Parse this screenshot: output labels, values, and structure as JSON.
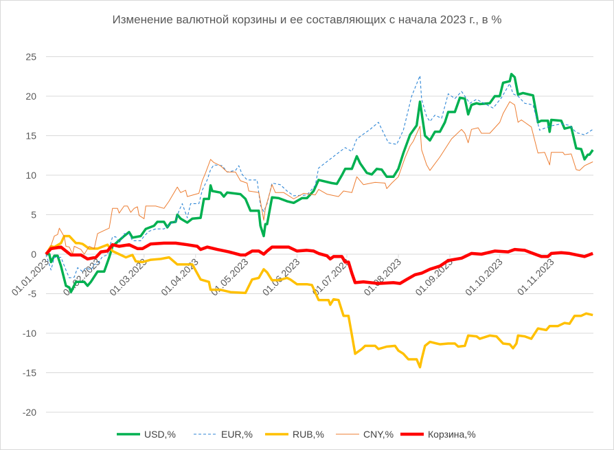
{
  "chart_data": {
    "type": "line",
    "title": "Изменение валютной корзины и ее составляющих с начала 2023 г., в %",
    "xlabel": "",
    "ylabel": "",
    "x_unit": "days since 01.01.2023",
    "ylim": [
      -20,
      25
    ],
    "yticks": [
      25,
      20,
      15,
      10,
      5,
      0,
      -5,
      -10,
      -15,
      -20
    ],
    "xticks": [
      {
        "day": 0,
        "label": "01.01.2023"
      },
      {
        "day": 31,
        "label": "01.02.2023"
      },
      {
        "day": 59,
        "label": "01.03.2023"
      },
      {
        "day": 90,
        "label": "01.04.2023"
      },
      {
        "day": 120,
        "label": "01.05.2023"
      },
      {
        "day": 151,
        "label": "01.06.2023"
      },
      {
        "day": 181,
        "label": "01.07.2023"
      },
      {
        "day": 212,
        "label": "01.08.2023"
      },
      {
        "day": 243,
        "label": "01.09.2023"
      },
      {
        "day": 273,
        "label": "01.10.2023"
      },
      {
        "day": 304,
        "label": "01.11.2023"
      }
    ],
    "xlim": [
      0,
      329
    ],
    "grid": true,
    "legend_position": "bottom",
    "series": [
      {
        "name": "USD,%",
        "color": "#00b050",
        "style": "thick",
        "x": [
          0,
          2,
          3,
          5,
          7,
          9,
          12,
          14,
          15,
          18,
          23,
          25,
          27,
          31,
          35,
          38,
          40,
          47,
          50,
          52,
          57,
          60,
          65,
          67,
          71,
          73,
          75,
          78,
          79,
          81,
          85,
          88,
          93,
          95,
          98,
          99,
          100,
          105,
          107,
          109,
          117,
          120,
          123,
          128,
          129,
          131,
          132,
          133,
          136,
          140,
          145,
          149,
          154,
          157,
          161,
          164,
          172,
          175,
          178,
          180,
          184,
          187,
          189,
          193,
          196,
          199,
          202,
          205,
          209,
          212,
          215,
          219,
          223,
          225,
          228,
          231,
          234,
          237,
          240,
          242,
          246,
          249,
          252,
          254,
          256,
          259,
          261,
          267,
          270,
          273,
          275,
          279,
          280,
          282,
          284,
          287,
          293,
          296,
          298,
          302,
          303,
          304,
          310,
          312,
          316,
          319,
          322,
          324,
          326,
          327,
          329
        ],
        "y": [
          0,
          0,
          -1.0,
          -0.2,
          -0.2,
          -1.5,
          -4.0,
          -4.2,
          -4.8,
          -3.5,
          -3.5,
          -4.0,
          -3.5,
          -2.2,
          -2.2,
          -0.4,
          1.0,
          2.3,
          2.8,
          2.1,
          2.3,
          3.2,
          3.6,
          4.1,
          4.1,
          3.4,
          4.0,
          4.1,
          5.0,
          4.5,
          4.0,
          4.5,
          4.6,
          7.0,
          7.0,
          8.7,
          8.0,
          7.8,
          7.3,
          7.8,
          7.6,
          7.0,
          5.5,
          5.5,
          3.6,
          2.3,
          3.8,
          3.8,
          7.2,
          7.1,
          6.7,
          6.5,
          7.1,
          7.1,
          8.0,
          9.4,
          9.0,
          8.9,
          10.0,
          10.8,
          10.8,
          12.4,
          11.5,
          10.3,
          10.1,
          10.8,
          10.7,
          9.8,
          9.8,
          10.8,
          12.8,
          15.1,
          16.3,
          19.3,
          15.0,
          14.4,
          15.5,
          15.5,
          16.7,
          18.0,
          18.0,
          19.8,
          19.7,
          17.7,
          18.9,
          19.1,
          19.0,
          19.1,
          20.0,
          20.0,
          21.7,
          21.9,
          22.8,
          22.4,
          20.2,
          20.4,
          20.1,
          16.7,
          16.9,
          16.9,
          15.5,
          17.0,
          16.9,
          15.9,
          16.1,
          13.4,
          13.3,
          12.0,
          12.6,
          12.6,
          13.2
        ]
      },
      {
        "name": "EUR,%",
        "color": "#2e86d6",
        "style": "dashed",
        "x": [
          0,
          3,
          5,
          9,
          12,
          14,
          17,
          19,
          22,
          24,
          27,
          29,
          31,
          34,
          37,
          40,
          42,
          44,
          47,
          50,
          52,
          57,
          59,
          62,
          66,
          71,
          76,
          78,
          80,
          82,
          85,
          87,
          92,
          94,
          97,
          99,
          101,
          106,
          109,
          114,
          116,
          118,
          121,
          127,
          129,
          131,
          133,
          136,
          141,
          145,
          149,
          157,
          162,
          164,
          172,
          180,
          184,
          187,
          195,
          200,
          206,
          211,
          215,
          220,
          225,
          226,
          229,
          231,
          234,
          238,
          242,
          246,
          250,
          255,
          259,
          269,
          274,
          279,
          281,
          284,
          288,
          293,
          297,
          303,
          310,
          315,
          319,
          324,
          329
        ],
        "y": [
          0,
          -2.0,
          -0.4,
          -0.4,
          -2.0,
          -3.0,
          -2.9,
          -1.7,
          -2.2,
          -1.7,
          -2.0,
          -1.3,
          -1.2,
          -0.3,
          -0.1,
          2.2,
          2.2,
          1.4,
          2.6,
          2.6,
          1.7,
          1.7,
          2.3,
          2.9,
          3.2,
          3.2,
          4.0,
          4.1,
          5.5,
          6.4,
          4.6,
          6.4,
          6.4,
          8.1,
          9.4,
          10.7,
          11.3,
          11.2,
          10.4,
          10.6,
          11.2,
          10.1,
          9.4,
          9.4,
          6.2,
          5.4,
          6.4,
          9.0,
          8.8,
          8.0,
          7.4,
          7.5,
          8.7,
          10.9,
          12.2,
          13.5,
          13.0,
          14.6,
          15.8,
          16.7,
          14.1,
          13.9,
          15.7,
          20.0,
          22.6,
          19.6,
          17.4,
          16.8,
          17.6,
          17.2,
          20.3,
          19.7,
          20.6,
          19.1,
          19.6,
          18.5,
          19.8,
          21.6,
          20.3,
          20.0,
          19.1,
          18.9,
          15.7,
          16.2,
          16.5,
          16.3,
          15.4,
          15.1,
          15.8
        ]
      },
      {
        "name": "RUB,%",
        "color": "#ffc000",
        "style": "thick",
        "x": [
          0,
          3,
          5,
          9,
          11,
          14,
          18,
          20,
          22,
          26,
          31,
          37,
          40,
          44,
          48,
          52,
          54,
          58,
          63,
          69,
          74,
          79,
          88,
          93,
          98,
          99,
          105,
          111,
          120,
          124,
          128,
          131,
          133,
          136,
          140,
          145,
          147,
          151,
          157,
          160,
          164,
          170,
          171,
          173,
          176,
          179,
          182,
          184,
          186,
          190,
          192,
          198,
          200,
          205,
          210,
          212,
          215,
          218,
          223,
          225,
          226,
          228,
          231,
          237,
          242,
          246,
          248,
          252,
          254,
          259,
          261,
          267,
          271,
          275,
          279,
          281,
          283,
          284,
          288,
          292,
          296,
          301,
          303,
          308,
          312,
          315,
          318,
          322,
          325,
          329
        ],
        "y": [
          0,
          1.0,
          0.9,
          1.4,
          2.3,
          2.3,
          1.4,
          1.4,
          1.3,
          0.7,
          0.7,
          1.2,
          0.4,
          0,
          -0.4,
          -0.1,
          -0.9,
          -1.0,
          -0.7,
          -0.6,
          -0.4,
          -1.3,
          -1.3,
          -3.2,
          -3.5,
          -4.5,
          -4.5,
          -4.8,
          -4.9,
          -3.2,
          -3.0,
          -1.9,
          -2.3,
          -3.3,
          -3.3,
          -3.0,
          -3.2,
          -3.8,
          -3.8,
          -3.9,
          -5.8,
          -5.8,
          -6.4,
          -5.7,
          -5.8,
          -7.8,
          -7.8,
          -10.2,
          -12.6,
          -12.0,
          -11.6,
          -11.6,
          -12.0,
          -11.7,
          -11.6,
          -12.2,
          -12.6,
          -13.3,
          -13.3,
          -14.3,
          -13.3,
          -11.6,
          -11.1,
          -11.4,
          -11.3,
          -11.3,
          -11.7,
          -11.6,
          -10.3,
          -10.4,
          -10.7,
          -10.3,
          -10.4,
          -11.3,
          -11.4,
          -11.9,
          -11.3,
          -10.3,
          -10.4,
          -10.7,
          -9.4,
          -9.6,
          -9.1,
          -9.1,
          -8.7,
          -8.8,
          -7.8,
          -7.8,
          -7.5,
          -7.7
        ]
      },
      {
        "name": "CNY,%",
        "color": "#ed7d31",
        "style": "thin",
        "x": [
          0,
          3,
          5,
          7,
          8,
          11,
          12,
          14,
          16,
          17,
          21,
          23,
          26,
          29,
          31,
          34,
          38,
          40,
          43,
          44,
          47,
          49,
          51,
          53,
          55,
          56,
          59,
          60,
          66,
          71,
          74,
          79,
          81,
          84,
          85,
          92,
          94,
          96,
          99,
          101,
          105,
          109,
          114,
          117,
          121,
          122,
          128,
          129,
          131,
          132,
          134,
          136,
          138,
          143,
          149,
          155,
          162,
          164,
          169,
          176,
          179,
          184,
          187,
          191,
          198,
          204,
          205,
          208,
          212,
          216,
          219,
          221,
          225,
          226,
          229,
          231,
          237,
          244,
          250,
          252,
          254,
          256,
          260,
          262,
          267,
          273,
          275,
          279,
          282,
          284,
          286,
          292,
          296,
          300,
          303,
          304,
          311,
          312,
          316,
          319,
          321,
          324,
          329
        ],
        "y": [
          0,
          1.1,
          2.3,
          2.5,
          3.3,
          2.2,
          1.0,
          0.9,
          0,
          1.0,
          0.6,
          0,
          1.0,
          0.7,
          2.6,
          2.9,
          3.3,
          5.8,
          5.8,
          5.2,
          6.1,
          6.1,
          5.3,
          5.8,
          6.0,
          4.9,
          4.5,
          6.1,
          6.1,
          5.8,
          6.7,
          8.5,
          7.8,
          8.1,
          7.3,
          7.7,
          9.3,
          10.3,
          12.0,
          11.6,
          11.2,
          10.4,
          10.4,
          9.3,
          9.0,
          8.0,
          7.8,
          6.7,
          4.3,
          5.8,
          7.3,
          8.8,
          7.8,
          7.8,
          7.0,
          7.7,
          7.5,
          8.2,
          7.6,
          7.3,
          8.0,
          7.8,
          9.8,
          8.8,
          9.1,
          9.0,
          8.3,
          9.0,
          9.8,
          12.2,
          13.7,
          14.3,
          16.2,
          13.2,
          11.3,
          10.6,
          12.3,
          14.6,
          15.8,
          15.3,
          14.1,
          15.8,
          16.0,
          15.3,
          15.3,
          16.7,
          17.8,
          19.3,
          18.9,
          16.7,
          17.0,
          16.1,
          12.8,
          12.9,
          11.3,
          12.9,
          12.9,
          12.6,
          12.7,
          10.7,
          10.6,
          11.2,
          11.7
        ]
      },
      {
        "name": "Корзина,%",
        "color": "#ff0000",
        "style": "thickest",
        "x": [
          0,
          3,
          9,
          12,
          15,
          21,
          25,
          30,
          33,
          37,
          40,
          44,
          50,
          55,
          58,
          63,
          71,
          78,
          85,
          91,
          93,
          97,
          103,
          110,
          117,
          120,
          124,
          128,
          131,
          133,
          136,
          146,
          151,
          157,
          161,
          164,
          169,
          171,
          173,
          178,
          180,
          182,
          184,
          186,
          191,
          200,
          209,
          213,
          217,
          222,
          226,
          231,
          237,
          242,
          250,
          256,
          262,
          270,
          278,
          282,
          288,
          293,
          298,
          302,
          304,
          310,
          315,
          324,
          329
        ],
        "y": [
          0,
          0.7,
          0.9,
          0.4,
          -0.1,
          -0.1,
          -0.6,
          -0.4,
          0.3,
          0.4,
          1.2,
          1.0,
          1.2,
          0.7,
          0.7,
          1.3,
          1.4,
          1.4,
          1.2,
          1.0,
          0.6,
          0.9,
          0.6,
          0.3,
          -0.1,
          -0.1,
          0.4,
          0.4,
          0,
          0.4,
          0.9,
          0.9,
          0.4,
          0.5,
          0.4,
          0.1,
          -0.2,
          -0.6,
          -0.3,
          -0.3,
          -1.0,
          -1.0,
          -2.4,
          -3.6,
          -3.5,
          -3.7,
          -3.6,
          -3.7,
          -3.2,
          -2.6,
          -2.4,
          -1.9,
          -1.5,
          -0.8,
          -0.5,
          0.1,
          0,
          0.4,
          0.3,
          0.6,
          0.5,
          0.1,
          -0.3,
          -0.3,
          0.1,
          0.2,
          0.1,
          -0.3,
          0.1
        ]
      }
    ]
  }
}
